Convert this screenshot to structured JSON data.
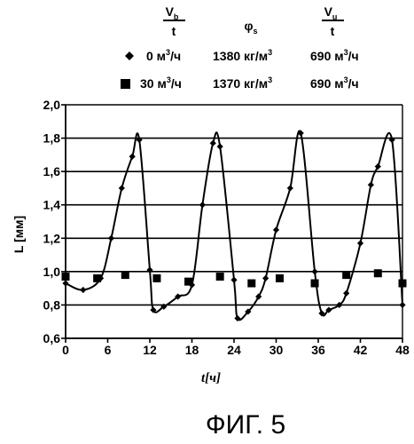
{
  "header": {
    "col1_top": "V",
    "col1_sub": "b",
    "col1_bottom": "t",
    "col2": "φ",
    "col2_sub": "s",
    "col3_top": "V",
    "col3_sub": "u",
    "col3_bottom": "t"
  },
  "legend": [
    {
      "marker": "diamond",
      "rate": "0 м",
      "rate_exp": "3",
      "rate_unit": "/ч",
      "density": "1380 кг/м",
      "density_exp": "3",
      "flow": "690 м",
      "flow_exp": "3",
      "flow_unit": "/ч"
    },
    {
      "marker": "square",
      "rate": "30 м",
      "rate_exp": "3",
      "rate_unit": "/ч",
      "density": "1370 кг/м",
      "density_exp": "3",
      "flow": "690 м",
      "flow_exp": "3",
      "flow_unit": "/ч"
    }
  ],
  "figure_caption": "ФИГ. 5",
  "chart_data": {
    "type": "line",
    "xlabel": "t[ч]",
    "ylabel": "L [мм]",
    "xlim": [
      0,
      48
    ],
    "ylim": [
      0.6,
      2.0
    ],
    "xticks": [
      0,
      6,
      12,
      18,
      24,
      30,
      36,
      42,
      48
    ],
    "yticks": [
      0.6,
      0.8,
      1.0,
      1.2,
      1.4,
      1.6,
      1.8,
      2.0
    ],
    "ytick_labels": [
      "0,6",
      "0,8",
      "1,0",
      "1,2",
      "1,4",
      "1,6",
      "1,8",
      "2,0"
    ],
    "grid": "horizontal",
    "series": [
      {
        "marker": "diamond",
        "style": "line",
        "x": [
          0,
          2.5,
          5,
          6.5,
          8,
          9.5,
          10.5,
          12,
          12.5,
          14,
          16,
          18,
          19.5,
          21,
          22,
          24,
          24.5,
          26,
          27.5,
          28.5,
          30,
          32,
          33.5,
          35.5,
          36.5,
          37.5,
          39,
          40,
          42,
          43.5,
          44.5,
          46.5,
          48
        ],
        "y": [
          0.93,
          0.89,
          0.96,
          1.2,
          1.5,
          1.69,
          1.79,
          1.01,
          0.77,
          0.79,
          0.85,
          0.92,
          1.4,
          1.77,
          1.75,
          0.95,
          0.72,
          0.76,
          0.85,
          0.96,
          1.25,
          1.5,
          1.83,
          1.0,
          0.75,
          0.77,
          0.8,
          0.87,
          1.17,
          1.52,
          1.63,
          1.79,
          0.8
        ]
      },
      {
        "marker": "square",
        "style": "markers",
        "x": [
          0,
          4.5,
          8.5,
          13,
          17.5,
          22,
          26.5,
          30.5,
          35.5,
          40,
          44.5,
          48
        ],
        "y": [
          0.97,
          0.96,
          0.98,
          0.96,
          0.94,
          0.97,
          0.93,
          0.96,
          0.93,
          0.98,
          0.99,
          0.93
        ]
      }
    ]
  }
}
